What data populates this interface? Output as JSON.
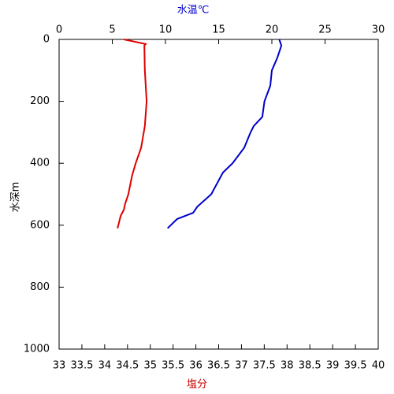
{
  "chart_data": {
    "type": "line",
    "xlabel": "塩分",
    "xlabel_color": "#cc0000",
    "x2label": "水温℃",
    "x2label_color": "#0000cc",
    "ylabel": "水深m",
    "xlim": [
      33,
      40
    ],
    "xticks": [
      33,
      33.5,
      34,
      34.5,
      35,
      35.5,
      36,
      36.5,
      37,
      37.5,
      38,
      38.5,
      39,
      39.5,
      40
    ],
    "x2lim": [
      0,
      30
    ],
    "x2ticks": [
      0,
      5,
      10,
      15,
      20,
      25,
      30
    ],
    "ylim": [
      0,
      1000
    ],
    "yticks": [
      0,
      200,
      400,
      600,
      800,
      1000
    ],
    "y_inverted": true,
    "series": [
      {
        "color": "#dd0000",
        "axis": "x",
        "x": [
          34.42,
          34.9,
          34.87,
          34.88,
          34.92,
          34.88,
          34.8,
          34.68,
          34.6,
          34.52,
          34.45,
          34.42,
          34.35,
          34.3,
          34.28
        ],
        "y": [
          0,
          15,
          20,
          100,
          200,
          280,
          350,
          400,
          440,
          500,
          530,
          550,
          570,
          600,
          610
        ]
      },
      {
        "color": "#0000cc",
        "axis": "x2",
        "x": [
          20.7,
          20.9,
          20.5,
          20.0,
          19.85,
          19.3,
          19.1,
          18.3,
          18.0,
          17.4,
          16.3,
          15.4,
          14.3,
          13.0,
          12.6,
          11.1,
          10.2
        ],
        "y": [
          0,
          20,
          60,
          100,
          150,
          200,
          250,
          280,
          300,
          350,
          400,
          430,
          500,
          540,
          560,
          580,
          610
        ]
      }
    ]
  }
}
